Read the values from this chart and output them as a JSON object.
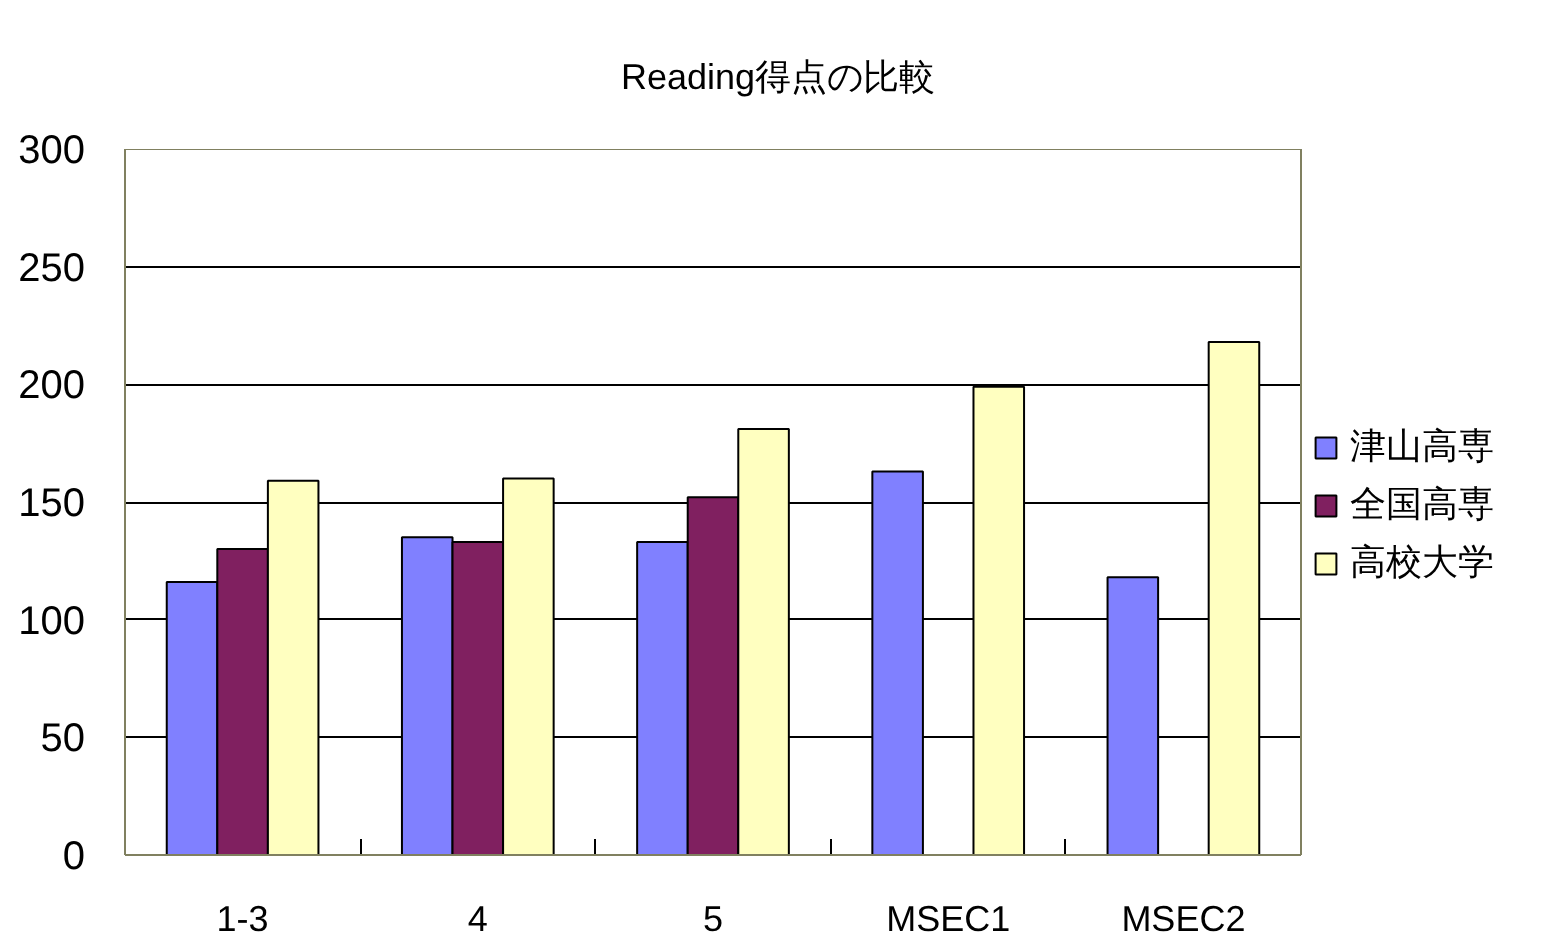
{
  "chart_data": {
    "type": "bar",
    "title": "Reading得点の比較",
    "categories": [
      "1-3",
      "4",
      "5",
      "MSEC1",
      "MSEC2"
    ],
    "series": [
      {
        "name": "津山高専",
        "color": "#8080ff",
        "values": [
          116,
          135,
          133,
          163,
          118
        ]
      },
      {
        "name": "全国高専",
        "color": "#802060",
        "values": [
          130,
          133,
          152,
          null,
          null
        ]
      },
      {
        "name": "高校大学",
        "color": "#ffffc0",
        "values": [
          159,
          160,
          181,
          199,
          218
        ]
      }
    ],
    "ylim": [
      0,
      300
    ],
    "yticks": [
      0,
      50,
      100,
      150,
      200,
      250,
      300
    ],
    "grid": "y",
    "legend": "right"
  }
}
